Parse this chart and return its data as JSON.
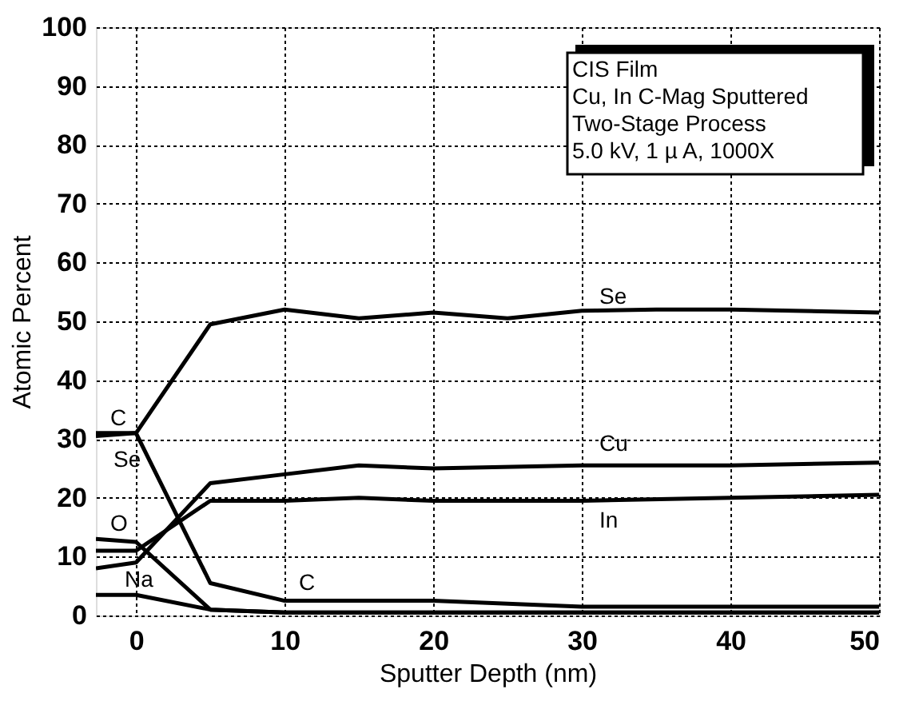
{
  "chart_data": {
    "type": "line",
    "xlabel": "Sputter Depth (nm)",
    "ylabel": "Atomic Percent",
    "xlim": [
      -2.7,
      50
    ],
    "ylim": [
      0,
      100
    ],
    "xticks": [
      0,
      10,
      20,
      30,
      40,
      50
    ],
    "yticks": [
      0,
      10,
      20,
      30,
      40,
      50,
      60,
      70,
      80,
      90,
      100
    ],
    "grid": true,
    "line_style": "solid",
    "marker": "none",
    "series": [
      {
        "color": "#000000",
        "x": [
          -2.7,
          0,
          5,
          10,
          15,
          20,
          25,
          30,
          35,
          40,
          50
        ],
        "values": [
          30.5,
          31,
          49.5,
          52,
          50.5,
          51.5,
          50.5,
          51.8,
          52,
          52,
          51.5
        ]
      },
      {
        "color": "#000000",
        "x": [
          -2.7,
          0,
          5,
          10,
          20,
          30,
          40,
          50
        ],
        "values": [
          31,
          31,
          5.5,
          2.5,
          2.5,
          1.5,
          1.5,
          1.5
        ]
      },
      {
        "color": "#000000",
        "x": [
          -2.7,
          0,
          5,
          10,
          15,
          20,
          30,
          40,
          50
        ],
        "values": [
          8,
          9,
          22.5,
          24,
          25.5,
          25,
          25.5,
          25.5,
          26
        ]
      },
      {
        "color": "#000000",
        "x": [
          -2.7,
          0,
          5,
          10,
          15,
          20,
          30,
          40,
          50
        ],
        "values": [
          11,
          11,
          19.5,
          19.5,
          20,
          19.5,
          19.5,
          20,
          20.5
        ]
      },
      {
        "color": "#000000",
        "x": [
          -2.7,
          0,
          5,
          10,
          50
        ],
        "values": [
          13,
          12.5,
          1,
          0.5,
          0.5
        ]
      },
      {
        "color": "#000000",
        "x": [
          -2.7,
          0,
          5,
          10,
          50
        ],
        "values": [
          3.5,
          3.5,
          1,
          0.5,
          0.5
        ]
      }
    ],
    "annotations": [
      "Se",
      "Cu",
      "In",
      "C",
      "C",
      "Se",
      "O",
      "Na",
      "CIS Film",
      "Cu, In C-Mag Sputtered",
      "Two-Stage  Process",
      "5.0 kV, 1 µ A, 1000X"
    ]
  }
}
